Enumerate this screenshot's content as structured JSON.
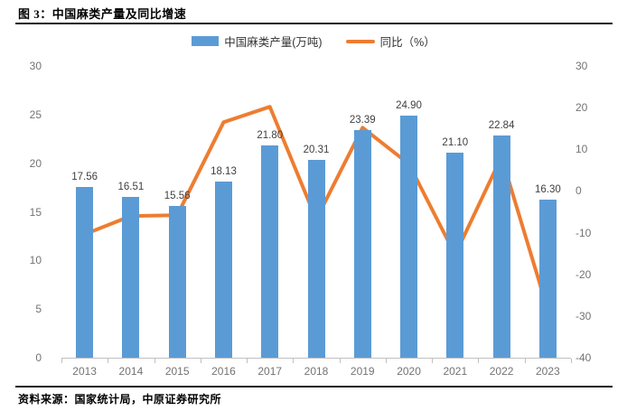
{
  "figure": {
    "title": "图 3：中国麻类产量及同比增速",
    "source": "资料来源：国家统计局，中原证券研究所"
  },
  "legend": [
    {
      "label": "中国麻类产量(万吨)",
      "marker": "bar",
      "color": "#5B9BD5"
    },
    {
      "label": "同比（%）",
      "marker": "line",
      "color": "#ED7D31"
    }
  ],
  "chart_data": {
    "type": "combo",
    "title": "图 3：中国麻类产量及同比增速",
    "categories": [
      "2013",
      "2014",
      "2015",
      "2016",
      "2017",
      "2018",
      "2019",
      "2020",
      "2021",
      "2022",
      "2023"
    ],
    "series": [
      {
        "name": "中国麻类产量(万吨)",
        "type": "bar",
        "axis": "left",
        "color": "#5B9BD5",
        "values": [
          17.56,
          16.51,
          15.56,
          18.13,
          21.8,
          20.31,
          23.39,
          24.9,
          21.1,
          22.84,
          16.3
        ],
        "data_labels_shown": true
      },
      {
        "name": "同比（%）",
        "type": "line",
        "axis": "right",
        "color": "#ED7D31",
        "values": [
          -10.4,
          -6.0,
          -5.8,
          16.5,
          20.2,
          -6.8,
          15.2,
          6.5,
          -15.3,
          8.2,
          -28.6
        ],
        "data_labels_shown": false
      }
    ],
    "left_axis": {
      "min": 0,
      "max": 30,
      "ticks": [
        30,
        25,
        20,
        15,
        10,
        5,
        0
      ]
    },
    "right_axis": {
      "min": -40,
      "max": 30,
      "ticks": [
        30,
        20,
        10,
        0,
        -10,
        -20,
        -30,
        -40
      ]
    },
    "grid": false,
    "legend_position": "top"
  },
  "colors": {
    "bar": "#5B9BD5",
    "line": "#ED7D31",
    "axis_text": "#737373",
    "data_label_text": "#404040",
    "axis_line": "#c0c0c0",
    "rule": "#1a1a1a"
  }
}
